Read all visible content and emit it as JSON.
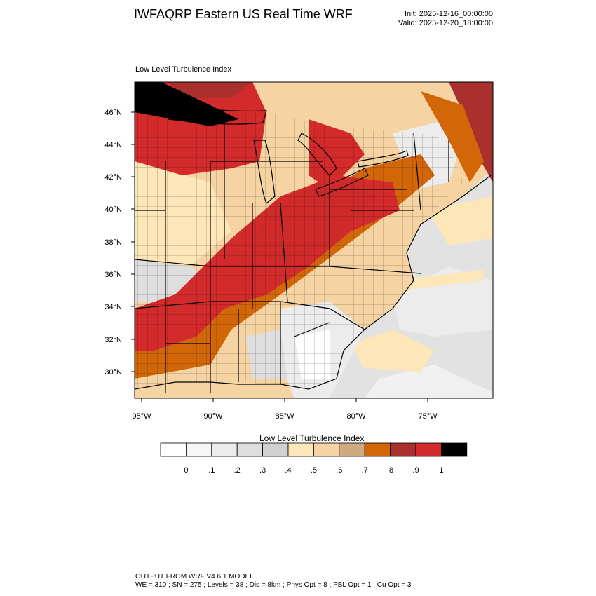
{
  "header": {
    "title": "IWFAQRP Eastern US Real Time WRF",
    "init": "Init: 2025-12-16_00:00:00",
    "valid": "Valid: 2025-12-20_18:00:00"
  },
  "map": {
    "subtitle": "Low Level Turbulence Index",
    "lat_labels": [
      "46°N",
      "44°N",
      "42°N",
      "40°N",
      "38°N",
      "36°N",
      "34°N",
      "32°N",
      "30°N"
    ],
    "lon_labels": [
      "95°W",
      "90°W",
      "85°W",
      "80°W",
      "75°W"
    ]
  },
  "colorbar": {
    "title": "Low Level Turbulence Index",
    "labels": [
      "0",
      ".1",
      ".2",
      ".3",
      ".4",
      ".5",
      ".6",
      ".7",
      ".8",
      ".9",
      "1"
    ],
    "colors": [
      "#ffffff",
      "#f6f6f6",
      "#ececec",
      "#dedede",
      "#d0d0d0",
      "#fde6b8",
      "#f5d3a3",
      "#cfaa80",
      "#d2670a",
      "#a9302d",
      "#d32a2b",
      "#000000"
    ]
  },
  "footer": {
    "line1": "OUTPUT FROM WRF V4.6.1 MODEL",
    "line2": "WE = 310 ; SN = 275 ; Levels = 38 ; Dis = 8km ; Phys Opt = 8 ; PBL Opt = 1 ; Cu Opt = 3"
  }
}
